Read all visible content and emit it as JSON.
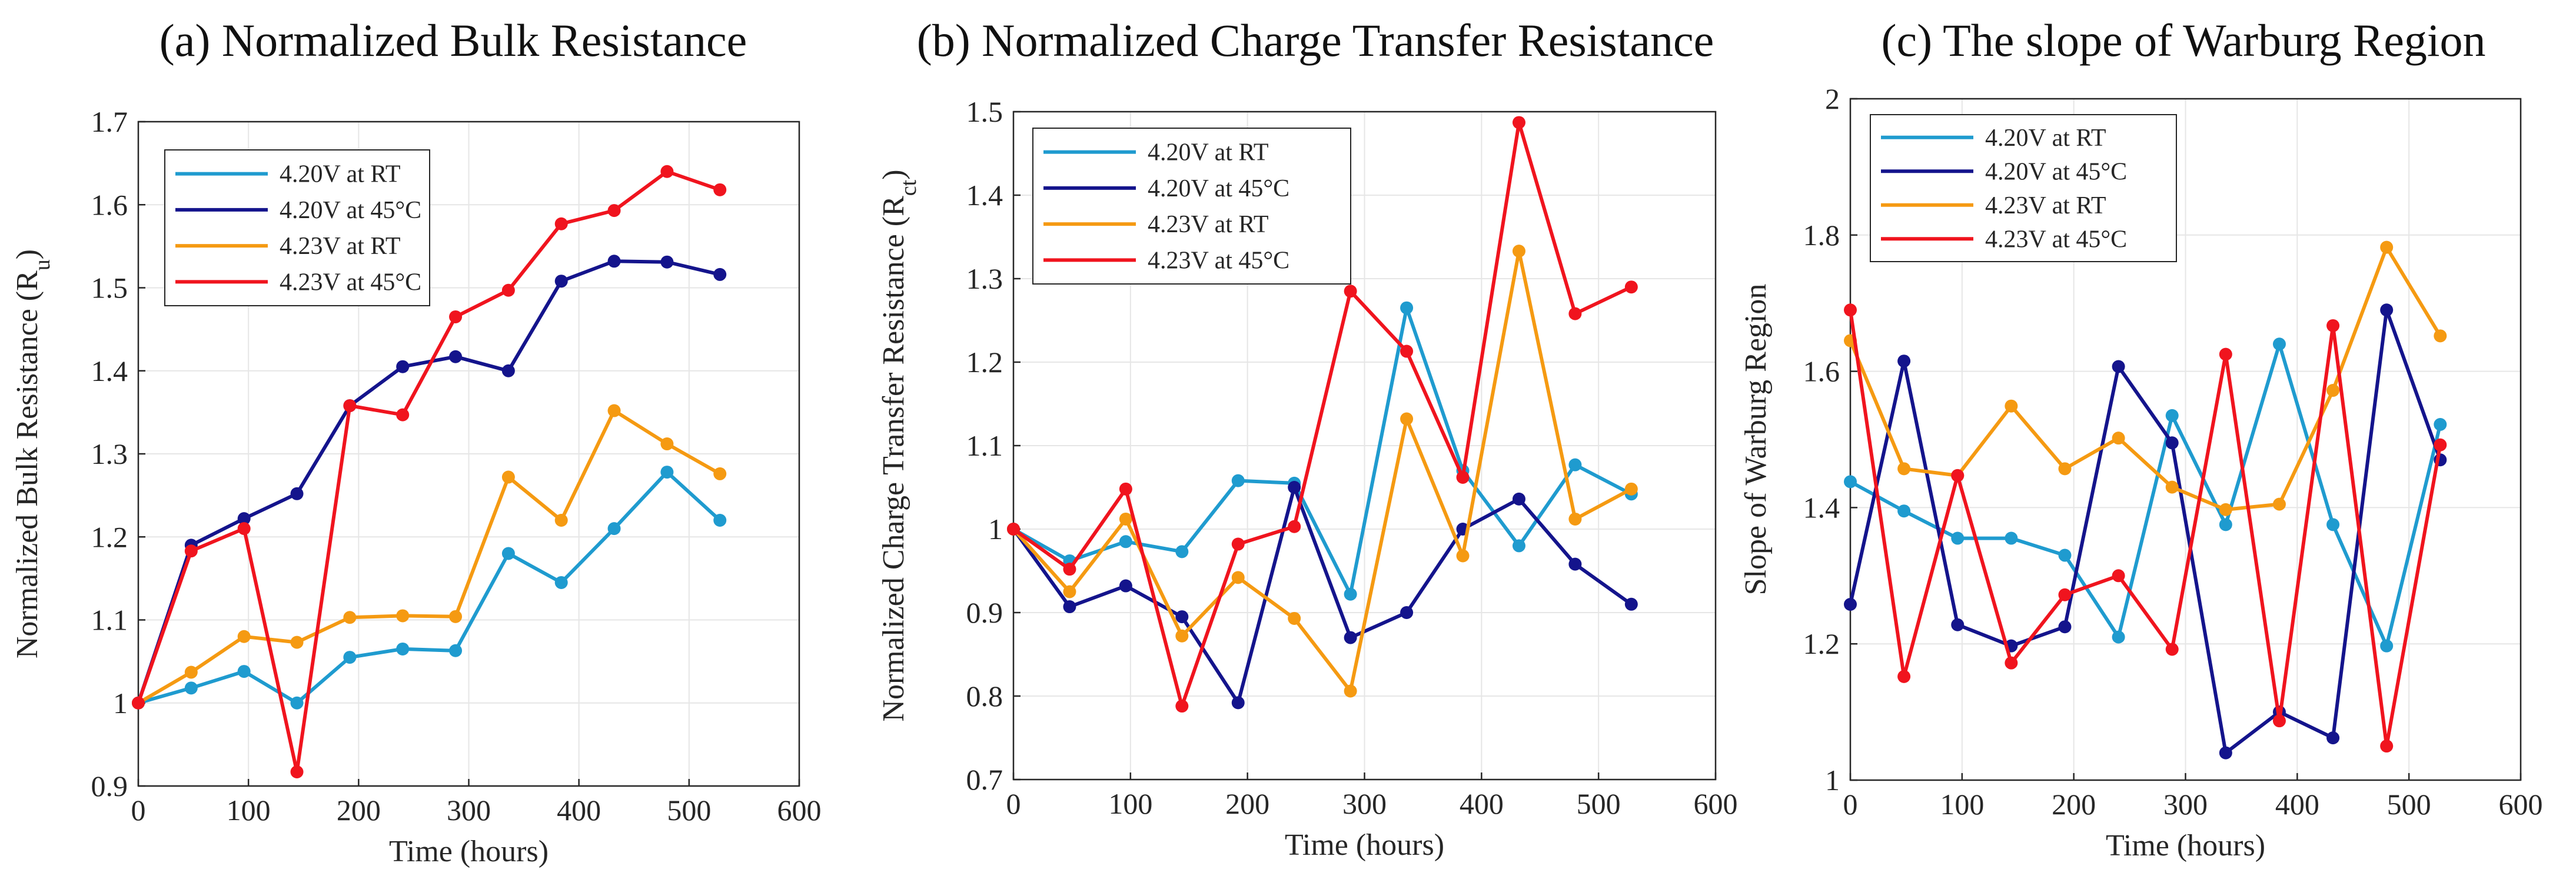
{
  "chart_data": [
    {
      "type": "line",
      "title": "(a) Normalized Bulk Resistance",
      "xlabel": "Time (hours)",
      "ylabel_main": "Normalized Bulk Resistance (R",
      "ylabel_sub": "u",
      "ylabel_close": ")",
      "xlim": [
        0,
        600
      ],
      "ylim": [
        0.9,
        1.7
      ],
      "xticks": [
        0,
        100,
        200,
        300,
        400,
        500,
        600
      ],
      "yticks": [
        0.9,
        1,
        1.1,
        1.2,
        1.3,
        1.4,
        1.5,
        1.6,
        1.7
      ],
      "ytick_labels": [
        "0.9",
        "1",
        "1.1",
        "1.2",
        "1.3",
        "1.4",
        "1.5",
        "1.6",
        "1.7"
      ],
      "legend_position": "top-left",
      "grid": true,
      "x": [
        0,
        48,
        96,
        144,
        192,
        240,
        288,
        336,
        384,
        432,
        480,
        528
      ],
      "series": [
        {
          "name": "4.20V at RT",
          "color": "#1f9bcf",
          "values": [
            1.0,
            1.018,
            1.038,
            1.0,
            1.055,
            1.065,
            1.063,
            1.18,
            1.145,
            1.21,
            1.278,
            1.22
          ]
        },
        {
          "name": "4.20V at 45°C",
          "color": "#14148c",
          "values": [
            1.0,
            1.19,
            1.222,
            1.252,
            1.358,
            1.405,
            1.417,
            1.4,
            1.508,
            1.532,
            1.531,
            1.516
          ]
        },
        {
          "name": "4.23V at RT",
          "color": "#f59a12",
          "values": [
            1.0,
            1.037,
            1.08,
            1.073,
            1.103,
            1.105,
            1.104,
            1.272,
            1.22,
            1.352,
            1.312,
            1.276
          ]
        },
        {
          "name": "4.23V at 45°C",
          "color": "#f0141e",
          "values": [
            1.0,
            1.183,
            1.21,
            0.917,
            1.358,
            1.347,
            1.465,
            1.497,
            1.577,
            1.593,
            1.64,
            1.618
          ]
        }
      ]
    },
    {
      "type": "line",
      "title": "(b) Normalized Charge Transfer Resistance",
      "xlabel": "Time (hours)",
      "ylabel_main": "Normalized Charge Transfer Resistance (R",
      "ylabel_sub": "ct",
      "ylabel_close": ")",
      "xlim": [
        0,
        600
      ],
      "ylim": [
        0.7,
        1.5
      ],
      "xticks": [
        0,
        100,
        200,
        300,
        400,
        500,
        600
      ],
      "yticks": [
        0.7,
        0.8,
        0.9,
        1,
        1.1,
        1.2,
        1.3,
        1.4,
        1.5
      ],
      "ytick_labels": [
        "0.7",
        "0.8",
        "0.9",
        "1",
        "1.1",
        "1.2",
        "1.3",
        "1.4",
        "1.5"
      ],
      "legend_position": "top-left",
      "grid": true,
      "x": [
        0,
        48,
        96,
        144,
        192,
        240,
        288,
        336,
        384,
        432,
        480,
        528
      ],
      "series": [
        {
          "name": "4.20V at RT",
          "color": "#1f9bcf",
          "values": [
            1.0,
            0.962,
            0.985,
            0.973,
            1.058,
            1.055,
            0.922,
            1.265,
            1.07,
            0.98,
            1.077,
            1.042
          ]
        },
        {
          "name": "4.20V at 45°C",
          "color": "#14148c",
          "values": [
            1.0,
            0.907,
            0.932,
            0.895,
            0.792,
            1.05,
            0.87,
            0.9,
            1.0,
            1.036,
            0.958,
            0.91
          ]
        },
        {
          "name": "4.23V at RT",
          "color": "#f59a12",
          "values": [
            1.0,
            0.925,
            1.012,
            0.872,
            0.942,
            0.893,
            0.806,
            1.132,
            0.968,
            1.333,
            1.012,
            1.048
          ]
        },
        {
          "name": "4.23V at 45°C",
          "color": "#f0141e",
          "values": [
            1.0,
            0.952,
            1.048,
            0.788,
            0.982,
            1.003,
            1.285,
            1.213,
            1.062,
            1.487,
            1.258,
            1.29
          ]
        }
      ]
    },
    {
      "type": "line",
      "title": "(c) The slope of Warburg Region",
      "xlabel": "Time (hours)",
      "ylabel_main": "Slope of Warburg Region",
      "ylabel_sub": "",
      "ylabel_close": "",
      "xlim": [
        0,
        600
      ],
      "ylim": [
        1,
        2
      ],
      "xticks": [
        0,
        100,
        200,
        300,
        400,
        500,
        600
      ],
      "yticks": [
        1,
        1.2,
        1.4,
        1.6,
        1.8,
        2
      ],
      "ytick_labels": [
        "1",
        "1.2",
        "1.4",
        "1.6",
        "1.8",
        "2"
      ],
      "legend_position": "top-left",
      "grid": true,
      "x": [
        0,
        48,
        96,
        144,
        192,
        240,
        288,
        336,
        384,
        432,
        480,
        528
      ],
      "series": [
        {
          "name": "4.20V at RT",
          "color": "#1f9bcf",
          "values": [
            1.438,
            1.395,
            1.355,
            1.355,
            1.33,
            1.21,
            1.535,
            1.375,
            1.64,
            1.375,
            1.197,
            1.522
          ]
        },
        {
          "name": "4.20V at 45°C",
          "color": "#14148c",
          "values": [
            1.258,
            1.615,
            1.228,
            1.197,
            1.225,
            1.607,
            1.495,
            1.04,
            1.1,
            1.062,
            1.69,
            1.47
          ]
        },
        {
          "name": "4.23V at RT",
          "color": "#f59a12",
          "values": [
            1.645,
            1.457,
            1.447,
            1.549,
            1.457,
            1.502,
            1.43,
            1.397,
            1.405,
            1.572,
            1.782,
            1.652
          ]
        },
        {
          "name": "4.23V at 45°C",
          "color": "#f0141e",
          "values": [
            1.69,
            1.152,
            1.447,
            1.172,
            1.272,
            1.3,
            1.192,
            1.625,
            1.087,
            1.667,
            1.05,
            1.492
          ]
        }
      ]
    }
  ]
}
